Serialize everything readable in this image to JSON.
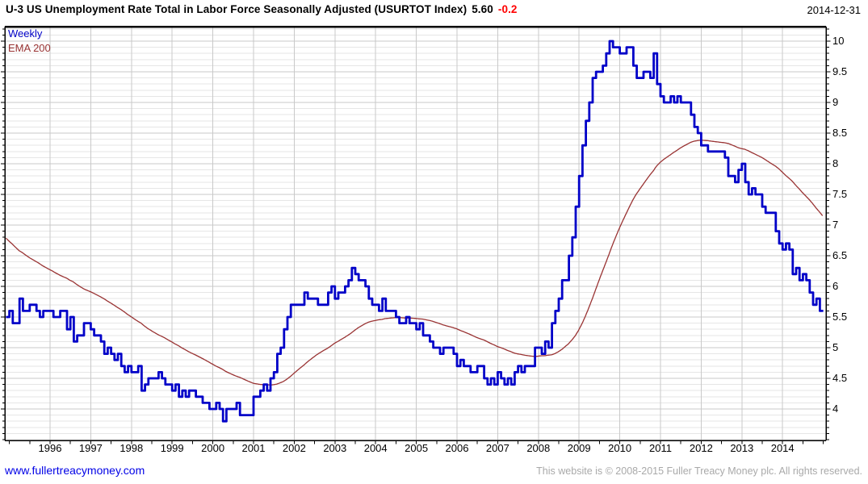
{
  "header": {
    "title": "U-3 US Unemployment Rate Total in Labor Force Seasonally Adjusted (USURTOT Index)",
    "last_value": "5.60",
    "change": "-0.2",
    "date": "2014-12-31"
  },
  "legend": {
    "weekly": "Weekly",
    "ema": "EMA 200"
  },
  "footer": {
    "link_text": "www.fullertreacymoney.com",
    "copyright": "This website is © 2008-2015 Fuller Treacy Money plc. All rights reserved."
  },
  "colors": {
    "weekly_line": "#0202c8",
    "ema_line": "#993333",
    "change_negative": "#ff0000",
    "link": "#0000e6",
    "copyright_text": "#a9a9a9",
    "grid_major": "#c9c9c9",
    "grid_minor": "#e6e6e6",
    "axis": "#000000"
  },
  "chart_data": {
    "type": "line",
    "title": "U-3 US Unemployment Rate Total in Labor Force Seasonally Adjusted (USURTOT Index)",
    "last_price": 5.6,
    "change": -0.2,
    "as_of_date": "2014-12-31",
    "grid": true,
    "legend_position": "top-left",
    "y_axis": {
      "side": "right",
      "range": [
        3.49,
        10.24
      ],
      "label_ticks": [
        4,
        4.5,
        5,
        5.5,
        6,
        6.5,
        7,
        7.5,
        8,
        8.5,
        9,
        9.5,
        10
      ],
      "major_step": 0.5,
      "minor_step": 0.1
    },
    "x_axis": {
      "range_years": [
        1994.89,
        2015.05
      ],
      "year_labels": [
        1996,
        1997,
        1998,
        1999,
        2000,
        2001,
        2002,
        2003,
        2004,
        2005,
        2006,
        2007,
        2008,
        2009,
        2010,
        2011,
        2012,
        2013,
        2014
      ],
      "tick_step_years": 0.5
    },
    "series": [
      {
        "name": "Weekly",
        "color": "#0202c8",
        "style": "step",
        "start_year": 1994,
        "start_month": 12,
        "frequency": "monthly",
        "values": [
          5.5,
          5.6,
          5.4,
          5.4,
          5.8,
          5.6,
          5.6,
          5.7,
          5.7,
          5.6,
          5.5,
          5.6,
          5.6,
          5.6,
          5.5,
          5.5,
          5.6,
          5.6,
          5.3,
          5.5,
          5.1,
          5.2,
          5.2,
          5.4,
          5.4,
          5.3,
          5.2,
          5.2,
          5.1,
          4.9,
          5.0,
          4.9,
          4.8,
          4.9,
          4.7,
          4.6,
          4.7,
          4.6,
          4.6,
          4.7,
          4.3,
          4.4,
          4.5,
          4.5,
          4.5,
          4.6,
          4.5,
          4.4,
          4.4,
          4.3,
          4.4,
          4.2,
          4.3,
          4.2,
          4.3,
          4.3,
          4.2,
          4.2,
          4.1,
          4.1,
          4.0,
          4.0,
          4.1,
          4.0,
          3.8,
          4.0,
          4.0,
          4.0,
          4.1,
          3.9,
          3.9,
          3.9,
          3.9,
          4.2,
          4.2,
          4.3,
          4.4,
          4.3,
          4.5,
          4.6,
          4.9,
          5.0,
          5.3,
          5.5,
          5.7,
          5.7,
          5.7,
          5.7,
          5.9,
          5.8,
          5.8,
          5.8,
          5.7,
          5.7,
          5.7,
          5.9,
          6.0,
          5.8,
          5.9,
          5.9,
          6.0,
          6.1,
          6.3,
          6.2,
          6.1,
          6.1,
          6.0,
          5.8,
          5.7,
          5.7,
          5.6,
          5.8,
          5.6,
          5.6,
          5.6,
          5.5,
          5.4,
          5.4,
          5.5,
          5.4,
          5.4,
          5.3,
          5.4,
          5.2,
          5.2,
          5.1,
          5.0,
          5.0,
          4.9,
          5.0,
          5.0,
          5.0,
          4.9,
          4.7,
          4.8,
          4.7,
          4.7,
          4.6,
          4.6,
          4.7,
          4.7,
          4.5,
          4.4,
          4.5,
          4.4,
          4.6,
          4.5,
          4.4,
          4.5,
          4.4,
          4.6,
          4.7,
          4.6,
          4.7,
          4.7,
          4.7,
          5.0,
          5.0,
          4.9,
          5.1,
          5.0,
          5.4,
          5.6,
          5.8,
          6.1,
          6.1,
          6.5,
          6.8,
          7.3,
          7.8,
          8.3,
          8.7,
          9.0,
          9.4,
          9.5,
          9.5,
          9.6,
          9.8,
          10.0,
          9.9,
          9.9,
          9.8,
          9.8,
          9.9,
          9.9,
          9.6,
          9.4,
          9.4,
          9.5,
          9.5,
          9.4,
          9.8,
          9.3,
          9.1,
          9.0,
          9.0,
          9.1,
          9.0,
          9.1,
          9.0,
          9.0,
          9.0,
          8.8,
          8.6,
          8.5,
          8.3,
          8.3,
          8.2,
          8.2,
          8.2,
          8.2,
          8.2,
          8.1,
          7.8,
          7.8,
          7.7,
          7.9,
          8.0,
          7.7,
          7.5,
          7.6,
          7.5,
          7.5,
          7.3,
          7.2,
          7.2,
          7.2,
          6.9,
          6.7,
          6.6,
          6.7,
          6.6,
          6.2,
          6.3,
          6.1,
          6.2,
          6.1,
          5.9,
          5.7,
          5.8,
          5.6
        ]
      },
      {
        "name": "EMA 200",
        "color": "#993333",
        "style": "smooth",
        "derived_from": "Weekly",
        "ema_period_weeks": 200,
        "initial_value": 6.8,
        "end_value_approx": 7.05
      }
    ]
  }
}
